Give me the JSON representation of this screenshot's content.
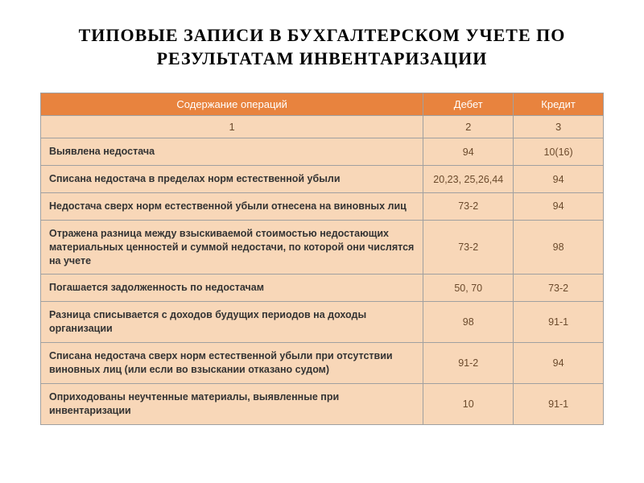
{
  "title": "ТИПОВЫЕ ЗАПИСИ В БУХГАЛТЕРСКОМ УЧЕТЕ ПО РЕЗУЛЬТАТАМ ИНВЕНТАРИЗАЦИИ",
  "table": {
    "header_bg": "#e8833e",
    "header_color": "#ffffff",
    "row_bg": "#f8d7b8",
    "border_color": "#a0a0a0",
    "desc_color": "#333333",
    "num_color": "#6b4a2c",
    "columns": [
      "Содержание операций",
      "Дебет",
      "Кредит"
    ],
    "number_row": [
      "1",
      "2",
      "3"
    ],
    "rows": [
      {
        "desc": "Выявлена недостача",
        "debit": "94",
        "credit": "10(16)"
      },
      {
        "desc": "Списана недостача в пределах норм естественной убыли",
        "debit": "20,23, 25,26,44",
        "credit": "94"
      },
      {
        "desc": "Недостача сверх норм естественной убыли отнесена на виновных лиц",
        "debit": "73-2",
        "credit": "94"
      },
      {
        "desc": "Отражена разница между взыскиваемой стоимостью недостающих материальных ценностей и суммой недостачи, по которой они числятся на учете",
        "debit": "73-2",
        "credit": "98"
      },
      {
        "desc": "Погашается задолженность по недостачам",
        "debit": "50, 70",
        "credit": "73-2"
      },
      {
        "desc": "Разница списывается с доходов будущих периодов на доходы организации",
        "debit": "98",
        "credit": "91-1"
      },
      {
        "desc": "Списана недостача сверх норм естественной убыли при отсутствии виновных лиц (или если во взыскании отказано судом)",
        "debit": "91-2",
        "credit": "94"
      },
      {
        "desc": "Оприходованы неучтенные материалы, выявленные при инвентаризации",
        "debit": "10",
        "credit": "91-1"
      }
    ]
  }
}
